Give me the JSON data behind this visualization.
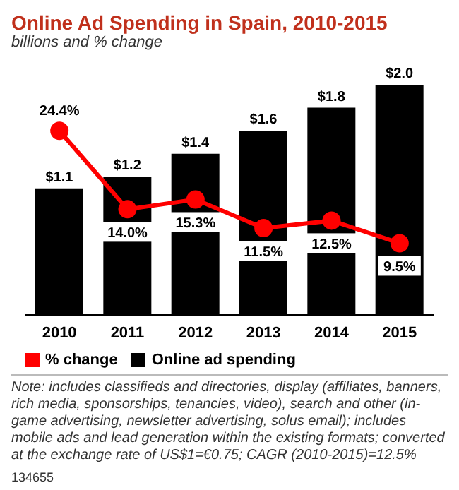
{
  "chart_data": {
    "type": "bar",
    "title": "Online Ad Spending in Spain, 2010-2015",
    "subtitle": "billions and % change",
    "categories": [
      "2010",
      "2011",
      "2012",
      "2013",
      "2014",
      "2015"
    ],
    "series": [
      {
        "name": "Online ad spending",
        "color": "#000000",
        "values": [
          1.1,
          1.2,
          1.4,
          1.6,
          1.8,
          2.0
        ],
        "value_labels": [
          "$1.1",
          "$1.2",
          "$1.4",
          "$1.6",
          "$1.8",
          "$2.0"
        ]
      },
      {
        "name": "% change",
        "type": "line",
        "axis": "y2",
        "color": "#ff0000",
        "marker": "circle",
        "values": [
          24.4,
          14.0,
          15.3,
          11.5,
          12.5,
          9.5
        ],
        "value_labels": [
          "24.4%",
          "14.0%",
          "15.3%",
          "11.5%",
          "12.5%",
          "9.5%"
        ]
      }
    ],
    "tick_labels": "x",
    "legend": "bottom",
    "grid": false,
    "annotations": [
      "Note: includes classifieds and directories, display (affiliates, banners, rich media, sponsorships, tenancies, video), search and other (in-game advertising, newsletter advertising, solus email); includes mobile ads and lead generation within the existing formats; converted at the exchange rate of US$1=€0.75; CAGR (2010-2015)=12.5%",
      "134655"
    ]
  }
}
